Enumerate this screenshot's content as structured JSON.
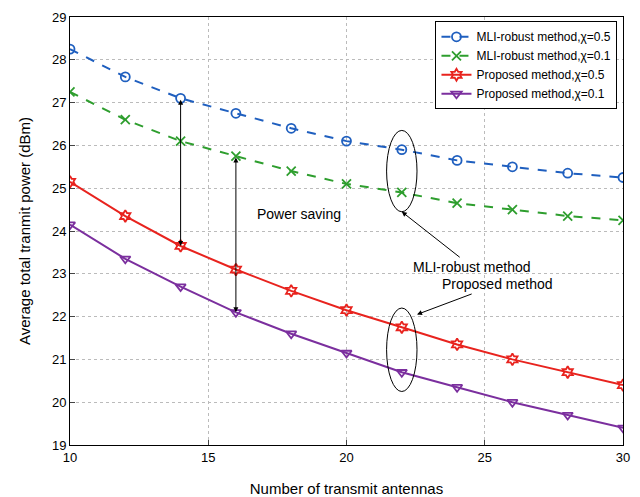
{
  "chart_data": {
    "type": "line",
    "x_label": "Number of transmit antennas",
    "y_label": "Average total tranmit power (dBm)",
    "x": [
      10,
      12,
      14,
      16,
      18,
      20,
      22,
      24,
      26,
      28,
      30
    ],
    "series": [
      {
        "name": "MLI-robust method,χ=0.5",
        "color": "#1f5fbf",
        "marker": "circle-open",
        "line_style": "dash",
        "values": [
          28.25,
          27.6,
          27.1,
          26.75,
          26.4,
          26.1,
          25.9,
          25.65,
          25.5,
          25.35,
          25.25
        ]
      },
      {
        "name": "MLI-robust method,χ=0.1",
        "color": "#2e9e2e",
        "marker": "x-thin-open",
        "line_style": "dash",
        "values": [
          27.25,
          26.6,
          26.1,
          25.75,
          25.4,
          25.1,
          24.9,
          24.65,
          24.5,
          24.35,
          24.25
        ]
      },
      {
        "name": "Proposed method,χ=0.5",
        "color": "#e8231e",
        "marker": "hexagram-open",
        "line_style": "solid",
        "values": [
          25.15,
          24.35,
          23.65,
          23.1,
          22.6,
          22.15,
          21.75,
          21.35,
          21.0,
          20.7,
          20.4
        ]
      },
      {
        "name": "Proposed method,χ=0.1",
        "color": "#7b2f9e",
        "marker": "triangle-down-open",
        "line_style": "solid",
        "values": [
          24.15,
          23.35,
          22.7,
          22.1,
          21.6,
          21.15,
          20.7,
          20.35,
          20.0,
          19.7,
          19.4
        ]
      }
    ],
    "xlim": [
      10,
      30
    ],
    "xticks": [
      10,
      15,
      20,
      25,
      30
    ],
    "ylim": [
      19,
      29
    ],
    "yticks": [
      19,
      20,
      21,
      22,
      23,
      24,
      25,
      26,
      27,
      28,
      29
    ],
    "grid": true,
    "legend": "upper right",
    "annotations": [
      "Power saving",
      "MLI-robust method",
      "Proposed method"
    ]
  }
}
